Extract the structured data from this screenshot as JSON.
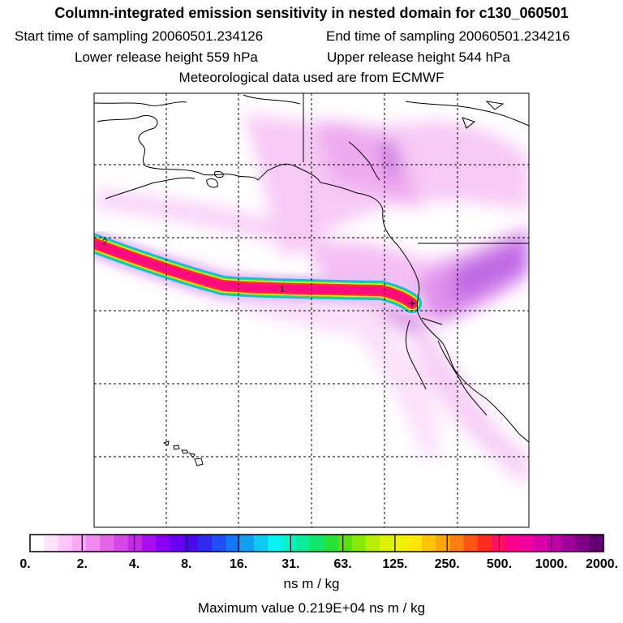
{
  "header": {
    "title": "Column-integrated emission sensitivity in nested domain for c130_060501",
    "start_time": "Start time of sampling 20060501.234126",
    "end_time": "End time of sampling 20060501.234216",
    "lower_height": "Lower release height  559 hPa",
    "upper_height": "Upper release height  544 hPa",
    "met_data": "Meteorological data used are from ECMWF"
  },
  "colorbar": {
    "tick_labels": [
      "0.",
      "2.",
      "4.",
      "8.",
      "16.",
      "31.",
      "63.",
      "125.",
      "250.",
      "500.",
      "1000.",
      "2000."
    ],
    "colors": [
      "#ffffff",
      "#fde4fd",
      "#fcc6fb",
      "#f7a9f5",
      "#ef8aee",
      "#e466e8",
      "#d648e6",
      "#c52ae6",
      "#a80ff0",
      "#8a00f5",
      "#6a00f0",
      "#4a0aeb",
      "#2f2af0",
      "#1f4ef5",
      "#1477f5",
      "#12a0f5",
      "#10c9f2",
      "#0af2f2",
      "#0af0c8",
      "#0aec98",
      "#11e66a",
      "#28e23a",
      "#58e010",
      "#8ae808",
      "#b8ee05",
      "#dcf205",
      "#f2f005",
      "#fde60a",
      "#ffc40a",
      "#ffa50a",
      "#ff7f10",
      "#ff5516",
      "#ff2a20",
      "#ff1060",
      "#ff0090",
      "#f000a0",
      "#d800a8",
      "#c000a8",
      "#a0009a",
      "#800088",
      "#600070"
    ],
    "unit": "ns m / kg",
    "max_value": "Maximum value  0.219E+04 ns m / kg"
  },
  "map": {
    "release_labels": [
      "1",
      "2"
    ],
    "receptor_marker": "+"
  }
}
